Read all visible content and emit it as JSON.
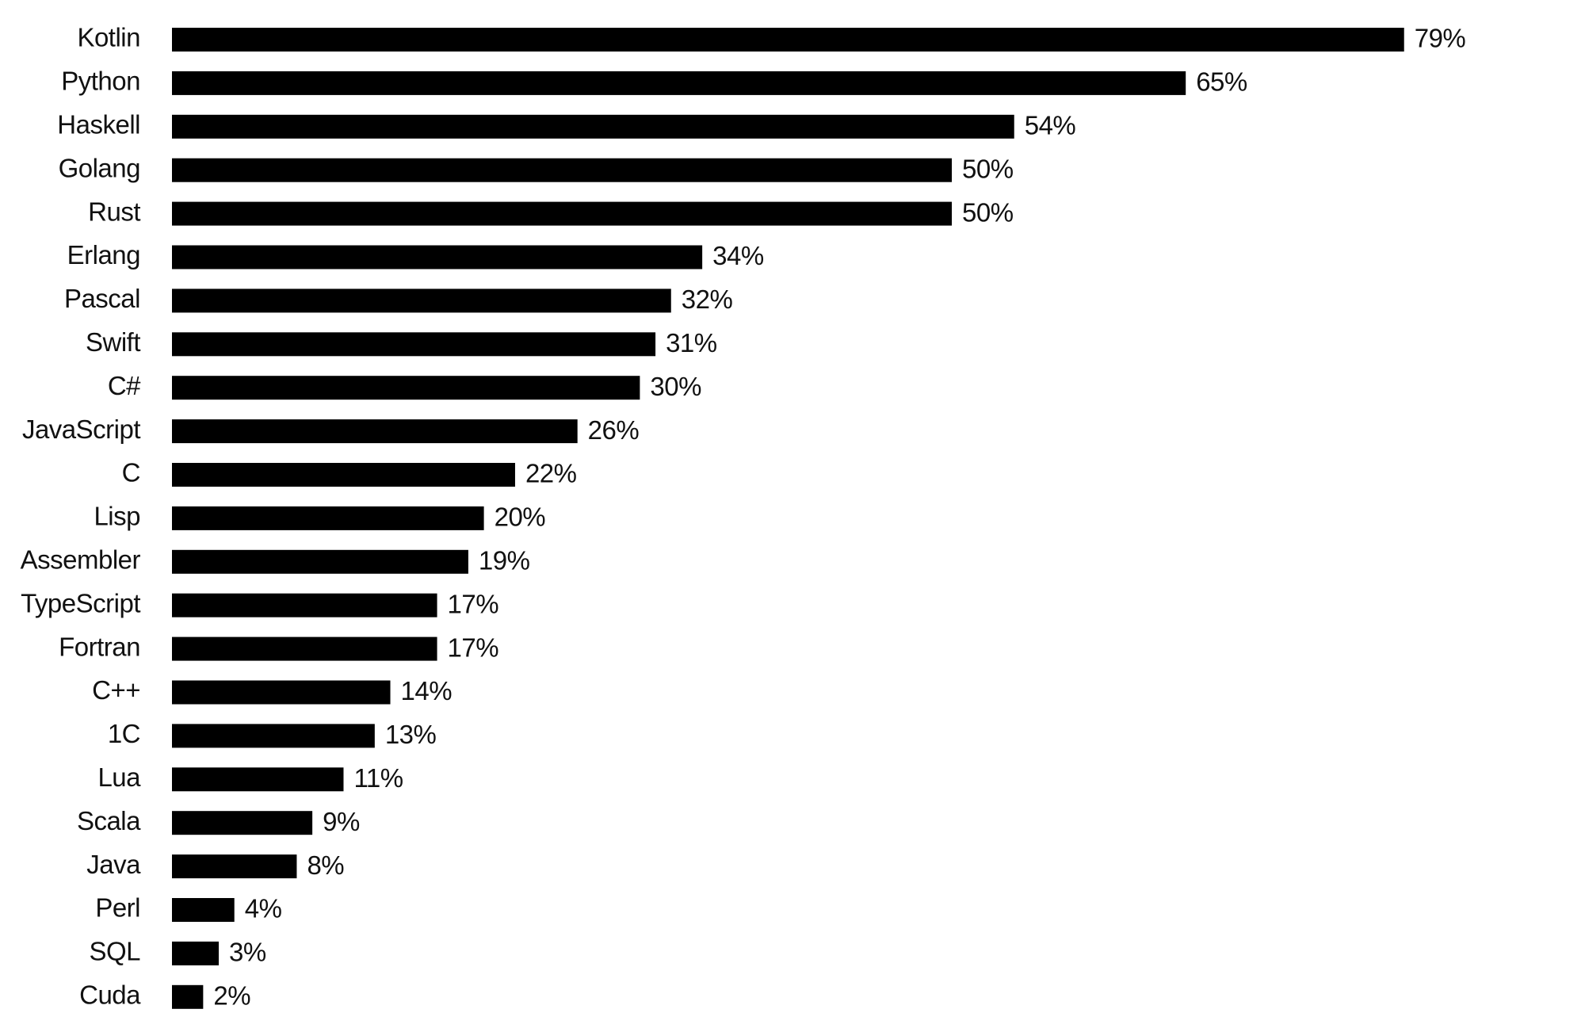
{
  "chart_data": {
    "type": "bar",
    "orientation": "horizontal",
    "categories": [
      "Kotlin",
      "Python",
      "Haskell",
      "Golang",
      "Rust",
      "Erlang",
      "Pascal",
      "Swift",
      "C#",
      "JavaScript",
      "C",
      "Lisp",
      "Assembler",
      "TypeScript",
      "Fortran",
      "C++",
      "1C",
      "Lua",
      "Scala",
      "Java",
      "Perl",
      "SQL",
      "Cuda"
    ],
    "values": [
      79,
      65,
      54,
      50,
      50,
      34,
      32,
      31,
      30,
      26,
      22,
      20,
      19,
      17,
      17,
      14,
      13,
      11,
      9,
      8,
      4,
      3,
      2
    ],
    "value_labels": [
      "79%",
      "65%",
      "54%",
      "50%",
      "50%",
      "34%",
      "32%",
      "31%",
      "30%",
      "26%",
      "22%",
      "20%",
      "19%",
      "17%",
      "17%",
      "14%",
      "13%",
      "11%",
      "9%",
      "8%",
      "4%",
      "3%",
      "2%"
    ],
    "color": "#000000"
  }
}
